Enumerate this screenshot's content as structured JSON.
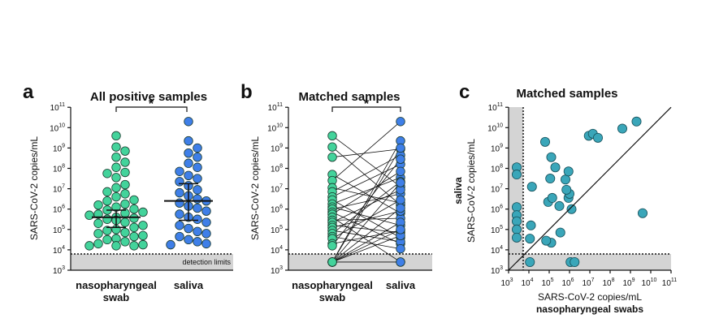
{
  "colors": {
    "nasopharyngeal": "#43d39b",
    "saliva": "#3f7fe8",
    "matched": "#3aa6b9",
    "detection_band": "#d4d4d4",
    "line": "#111111"
  },
  "panels": {
    "a": {
      "letter": "a",
      "title": "All positive samples",
      "significance": "*",
      "detection_label": "detection limits"
    },
    "b": {
      "letter": "b",
      "title": "Matched samples",
      "significance": "*"
    },
    "c": {
      "letter": "c",
      "title": "Matched samples"
    }
  },
  "axes": {
    "ylabel": "SARS-CoV-2 copies/mL",
    "category_nasopharyngeal_line1": "nasopharyngeal",
    "category_nasopharyngeal_line2": "swab",
    "category_saliva": "saliva",
    "c_xlabel": "SARS-CoV-2 copies/mL",
    "c_xlabel_bold": "nasopharyngeal swabs",
    "c_ylabel_bold": "saliva"
  },
  "chart_data": [
    {
      "type": "scatter",
      "title": "All positive samples",
      "categories": [
        "nasopharyngeal swab",
        "saliva"
      ],
      "ylabel": "SARS-CoV-2 copies/mL",
      "yscale": "log10",
      "ylim_log10": [
        3,
        11
      ],
      "detection_limit_log10": 3.7,
      "series": [
        {
          "name": "nasopharyngeal swab",
          "median_log10": 5.6,
          "iqr_log10": [
            5.1,
            5.95
          ],
          "values_log10": [
            9.6,
            9.05,
            8.85,
            8.55,
            8.3,
            8.05,
            7.8,
            7.75,
            7.55,
            7.2,
            7.05,
            6.85,
            6.75,
            6.6,
            6.45,
            6.4,
            6.25,
            6.2,
            6.1,
            6.0,
            5.95,
            5.85,
            5.8,
            5.75,
            5.7,
            5.6,
            5.55,
            5.5,
            5.45,
            5.35,
            5.3,
            5.2,
            5.1,
            5.0,
            4.95,
            4.85,
            4.8,
            4.7,
            4.65,
            4.55,
            4.5,
            4.4,
            4.3,
            4.25,
            4.2,
            4.2,
            4.2
          ]
        },
        {
          "name": "saliva",
          "median_log10": 6.4,
          "iqr_log10": [
            5.45,
            7.25
          ],
          "values_log10": [
            10.3,
            9.35,
            9.0,
            8.75,
            8.55,
            8.25,
            8.05,
            7.85,
            7.65,
            7.5,
            7.35,
            7.15,
            6.95,
            6.8,
            6.65,
            6.5,
            6.4,
            6.3,
            6.15,
            6.05,
            5.9,
            5.75,
            5.6,
            5.5,
            5.35,
            5.2,
            5.05,
            4.9,
            4.8,
            4.65,
            4.5,
            4.4,
            4.3,
            4.25
          ]
        }
      ]
    },
    {
      "type": "line",
      "title": "Matched samples",
      "categories": [
        "nasopharyngeal swab",
        "saliva"
      ],
      "ylabel": "SARS-CoV-2 copies/mL",
      "yscale": "log10",
      "ylim_log10": [
        3,
        11
      ],
      "detection_limit_log10": 3.7,
      "pairs_log10": [
        [
          9.6,
          7.1
        ],
        [
          9.05,
          6.2
        ],
        [
          8.55,
          8.95
        ],
        [
          7.7,
          5.8
        ],
        [
          7.4,
          10.3
        ],
        [
          7.05,
          6.3
        ],
        [
          6.85,
          8.65
        ],
        [
          6.6,
          8.2
        ],
        [
          6.45,
          4.6
        ],
        [
          6.25,
          7.55
        ],
        [
          6.1,
          5.2
        ],
        [
          6.0,
          6.75
        ],
        [
          5.85,
          4.3
        ],
        [
          5.75,
          7.85
        ],
        [
          5.6,
          3.4
        ],
        [
          5.45,
          5.55
        ],
        [
          5.35,
          6.95
        ],
        [
          5.2,
          4.85
        ],
        [
          5.1,
          5.9
        ],
        [
          4.95,
          4.4
        ],
        [
          4.8,
          7.35
        ],
        [
          4.65,
          4.05
        ],
        [
          4.55,
          6.45
        ],
        [
          4.3,
          4.95
        ],
        [
          4.2,
          8.45
        ],
        [
          3.4,
          9.35
        ],
        [
          3.4,
          6.05
        ],
        [
          3.4,
          5.35
        ],
        [
          3.4,
          4.7
        ],
        [
          3.4,
          7.3
        ],
        [
          3.4,
          5.0
        ],
        [
          3.4,
          9.0
        ],
        [
          3.4,
          3.4
        ]
      ]
    },
    {
      "type": "scatter",
      "title": "Matched samples",
      "xlabel": "SARS-CoV-2 copies/mL nasopharyngeal swabs",
      "ylabel": "SARS-CoV-2 copies/mL saliva",
      "xscale": "log10",
      "yscale": "log10",
      "xlim_log10": [
        3,
        11
      ],
      "ylim_log10": [
        3,
        11
      ],
      "detection_limit_log10": 3.7,
      "identity_line": true,
      "points_log10": [
        [
          3.4,
          8.05
        ],
        [
          3.4,
          7.7
        ],
        [
          3.4,
          6.1
        ],
        [
          3.4,
          5.7
        ],
        [
          3.4,
          5.4
        ],
        [
          3.4,
          5.0
        ],
        [
          3.4,
          4.6
        ],
        [
          4.05,
          4.55
        ],
        [
          4.1,
          5.2
        ],
        [
          4.15,
          7.1
        ],
        [
          4.05,
          3.4
        ],
        [
          4.8,
          9.3
        ],
        [
          5.1,
          8.55
        ],
        [
          5.05,
          7.5
        ],
        [
          4.95,
          6.35
        ],
        [
          5.15,
          6.55
        ],
        [
          5.3,
          8.05
        ],
        [
          5.5,
          6.15
        ],
        [
          5.55,
          4.85
        ],
        [
          5.1,
          4.35
        ],
        [
          4.85,
          4.45
        ],
        [
          5.8,
          7.45
        ],
        [
          5.95,
          6.55
        ],
        [
          6.0,
          6.75
        ],
        [
          5.85,
          6.95
        ],
        [
          5.95,
          7.85
        ],
        [
          6.05,
          3.4
        ],
        [
          6.25,
          3.4
        ],
        [
          6.1,
          6.0
        ],
        [
          6.95,
          9.6
        ],
        [
          7.15,
          9.7
        ],
        [
          7.4,
          9.5
        ],
        [
          8.6,
          9.95
        ],
        [
          9.3,
          10.3
        ],
        [
          9.6,
          5.8
        ]
      ]
    }
  ]
}
